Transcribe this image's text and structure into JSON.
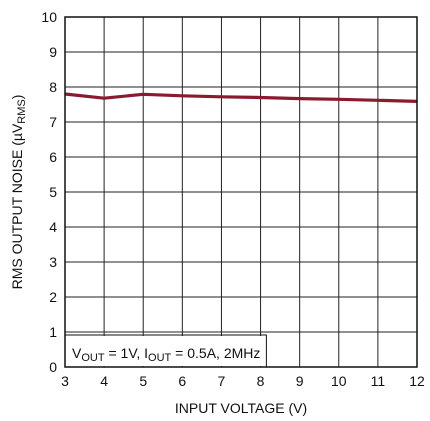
{
  "chart_data": {
    "type": "line",
    "xlabel": "INPUT VOLTAGE (V)",
    "ylabel": {
      "main": "RMS OUTPUT NOISE (µV",
      "sub": "RMS",
      "close": ")"
    },
    "xlim": [
      3,
      12
    ],
    "ylim": [
      0,
      10
    ],
    "x_ticks": [
      "3",
      "4",
      "5",
      "6",
      "7",
      "8",
      "9",
      "10",
      "11",
      "12"
    ],
    "y_ticks": [
      "0",
      "1",
      "2",
      "3",
      "4",
      "5",
      "6",
      "7",
      "8",
      "9",
      "10"
    ],
    "grid": true,
    "series": [
      {
        "color": "#8b1a2e",
        "x": [
          3,
          4,
          5,
          6,
          7,
          8,
          9,
          10,
          11,
          12
        ],
        "y": [
          7.8,
          7.68,
          7.79,
          7.75,
          7.72,
          7.7,
          7.67,
          7.65,
          7.62,
          7.59
        ]
      }
    ],
    "annotation": {
      "parts": [
        {
          "text": "V",
          "sub": false
        },
        {
          "text": "OUT",
          "sub": true
        },
        {
          "text": " = 1V, I",
          "sub": false
        },
        {
          "text": "OUT",
          "sub": true
        },
        {
          "text": " = 0.5A, 2MHz",
          "sub": false
        }
      ]
    }
  }
}
